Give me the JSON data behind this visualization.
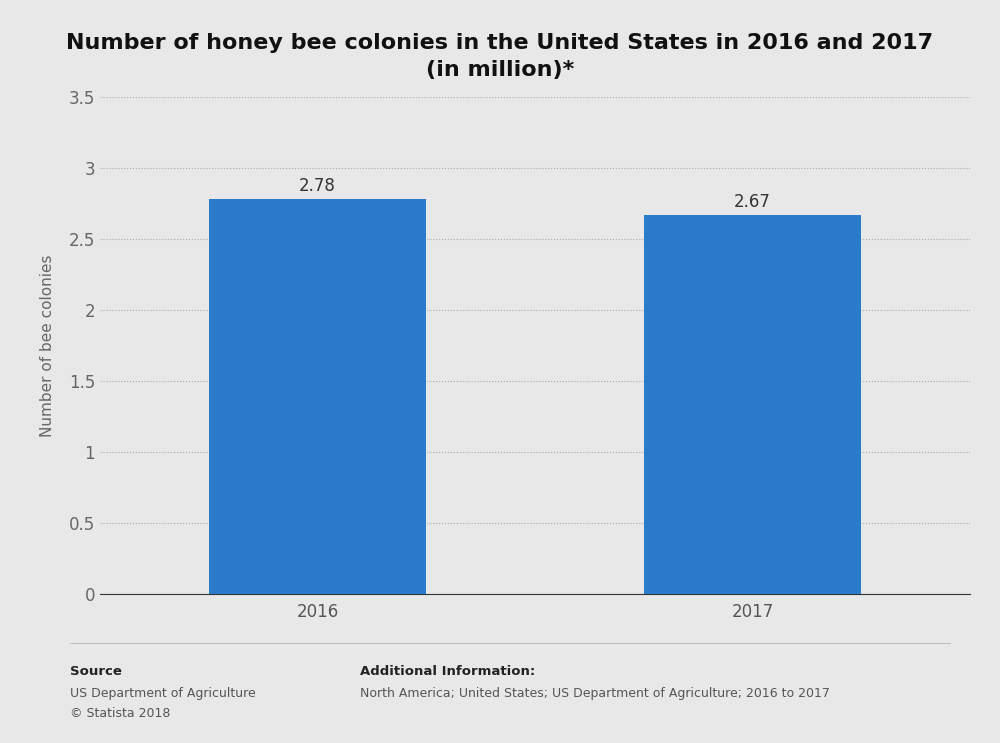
{
  "title": "Number of honey bee colonies in the United States in 2016 and 2017\n(in million)*",
  "categories": [
    "2016",
    "2017"
  ],
  "values": [
    2.78,
    2.67
  ],
  "bar_color": "#2b7bcd",
  "ylabel": "Number of bee colonies",
  "ylim": [
    0,
    3.5
  ],
  "yticks": [
    0,
    0.5,
    1,
    1.5,
    2,
    2.5,
    3,
    3.5
  ],
  "background_color": "#e8e8e8",
  "plot_background_color": "#e8e8e8",
  "title_fontsize": 16,
  "label_fontsize": 11,
  "tick_fontsize": 12,
  "value_fontsize": 12,
  "source_text": "Source",
  "source_line1": "US Department of Agriculture",
  "source_line2": "© Statista 2018",
  "addinfo_title": "Additional Information:",
  "addinfo_text": "North America; United States; US Department of Agriculture; 2016 to 2017"
}
